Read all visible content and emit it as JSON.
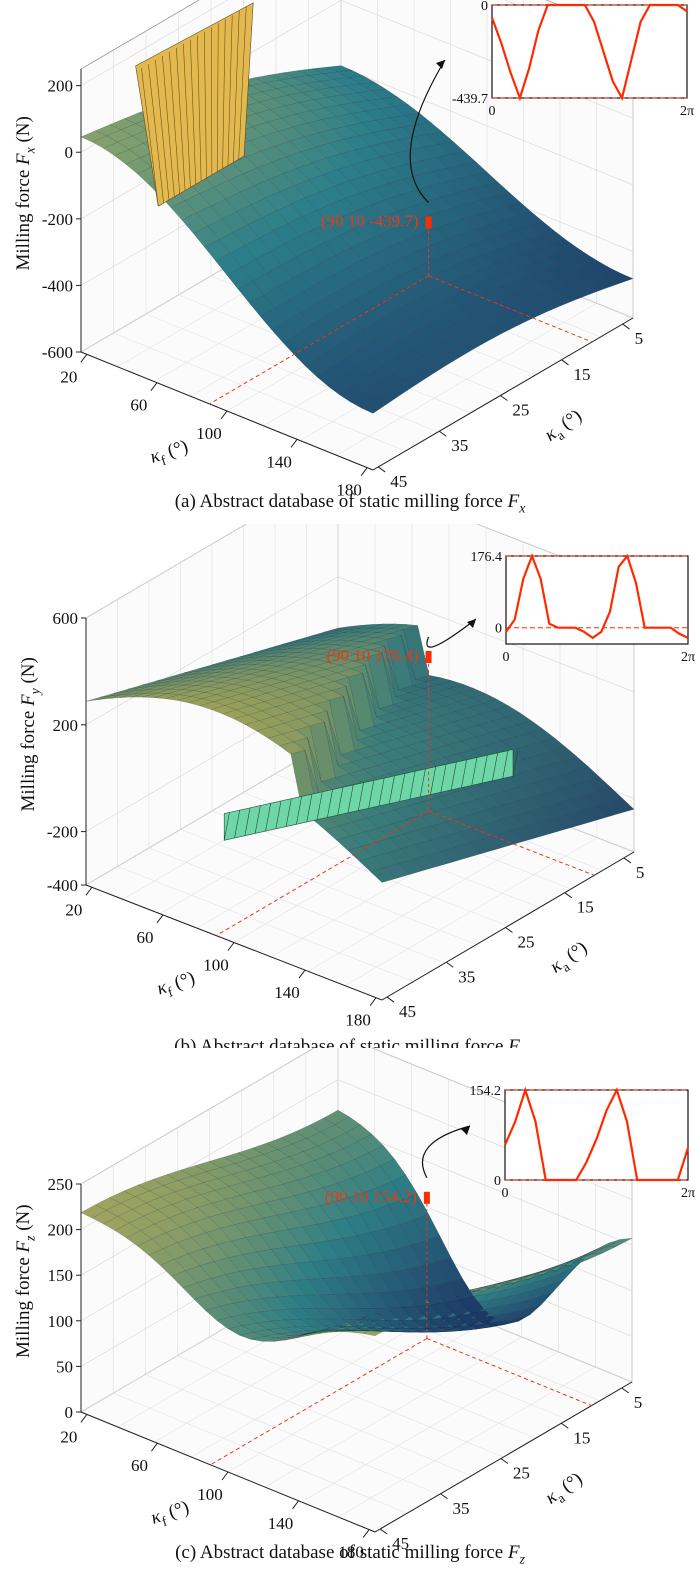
{
  "chart_data": [
    {
      "type": "surface3d",
      "caption": {
        "prefix": "(a) Abstract database of static milling force ",
        "sym": "F",
        "sub": "x"
      },
      "zlabel": {
        "prefix": "Milling force ",
        "sym": "F",
        "sub": "x",
        "unit": " (N)"
      },
      "xlabel": {
        "sym": "κ",
        "sub": "f",
        "unit": " (°)"
      },
      "ylabel": {
        "sym": "κ",
        "sub": "a",
        "unit": " (°)"
      },
      "x_ticks": [
        "20",
        "60",
        "100",
        "140",
        "180"
      ],
      "y_ticks": [
        "5",
        "15",
        "25",
        "35",
        "45"
      ],
      "z_ticks": [
        "200",
        "0",
        "-200",
        "-400",
        "-600"
      ],
      "zlim": [
        -600,
        250
      ],
      "annotation": "(90 10 -439.7)",
      "point": {
        "kf": 90,
        "ka": 10,
        "force": -439.7
      },
      "surface_colors": [
        "#1b2f63",
        "#2c7f8a",
        "#d8c050"
      ],
      "inset": {
        "ticks_y": [
          "0",
          "-439.7"
        ],
        "ticks_x": [
          "0",
          "2π"
        ],
        "x_range": [
          0,
          6.2832
        ],
        "y_range": [
          -439.7,
          0
        ],
        "line_color": "#ff2a00",
        "values": [
          -60,
          -180,
          -320,
          -439.7,
          -300,
          -120,
          0,
          0,
          0,
          0,
          0,
          -80,
          -220,
          -360,
          -439.7,
          -260,
          -80,
          0,
          0,
          0,
          0,
          -30
        ]
      }
    },
    {
      "type": "surface3d",
      "caption": {
        "prefix": "(b) Abstract database of static milling force ",
        "sym": "F",
        "sub": "y"
      },
      "zlabel": {
        "prefix": "Milling force ",
        "sym": "F",
        "sub": "y",
        "unit": " (N)"
      },
      "xlabel": {
        "sym": "κ",
        "sub": "f",
        "unit": " (°)"
      },
      "ylabel": {
        "sym": "κ",
        "sub": "a",
        "unit": " (°)"
      },
      "x_ticks": [
        "20",
        "60",
        "100",
        "140",
        "180"
      ],
      "y_ticks": [
        "5",
        "15",
        "25",
        "35",
        "45"
      ],
      "z_ticks": [
        "600",
        "200",
        "-200",
        "-400"
      ],
      "zlim": [
        -400,
        600
      ],
      "annotation": "(90 10 176.4)",
      "point": {
        "kf": 90,
        "ka": 10,
        "force": 176.4
      },
      "surface_colors": [
        "#1b2f63",
        "#3a7d7a",
        "#c9b24a"
      ],
      "inset": {
        "ticks_y": [
          "176.4",
          "0"
        ],
        "ticks_x": [
          "0",
          "2π"
        ],
        "x_range": [
          0,
          6.2832
        ],
        "y_range": [
          -40,
          176.4
        ],
        "line_color": "#ff2a00",
        "values": [
          -10,
          20,
          120,
          176.4,
          120,
          10,
          0,
          0,
          0,
          -10,
          -25,
          -10,
          40,
          150,
          176.4,
          110,
          0,
          0,
          0,
          0,
          -15,
          -25
        ]
      }
    },
    {
      "type": "surface3d",
      "caption": {
        "prefix": "(c) Abstract database of static milling force ",
        "sym": "F",
        "sub": "z"
      },
      "zlabel": {
        "prefix": "Milling force ",
        "sym": "F",
        "sub": "z",
        "unit": " (N)"
      },
      "xlabel": {
        "sym": "κ",
        "sub": "f",
        "unit": " (°)"
      },
      "ylabel": {
        "sym": "κ",
        "sub": "a",
        "unit": " (°)"
      },
      "x_ticks": [
        "20",
        "60",
        "100",
        "140",
        "180"
      ],
      "y_ticks": [
        "5",
        "15",
        "25",
        "35",
        "45"
      ],
      "z_ticks": [
        "250",
        "200",
        "150",
        "100",
        "50",
        "0"
      ],
      "zlim": [
        0,
        250
      ],
      "annotation": "(90 10 154.2)",
      "point": {
        "kf": 90,
        "ka": 10,
        "force": 154.2
      },
      "surface_colors": [
        "#1b2f63",
        "#2e7f86",
        "#c4b052"
      ],
      "inset": {
        "ticks_y": [
          "154.2",
          "0"
        ],
        "ticks_x": [
          "0",
          "2π"
        ],
        "x_range": [
          0,
          6.2832
        ],
        "y_range": [
          0,
          154.2
        ],
        "line_color": "#ff2a00",
        "values": [
          60,
          100,
          154.2,
          100,
          0,
          0,
          0,
          0,
          30,
          70,
          120,
          154.2,
          100,
          0,
          0,
          0,
          0,
          0,
          55
        ]
      }
    }
  ]
}
